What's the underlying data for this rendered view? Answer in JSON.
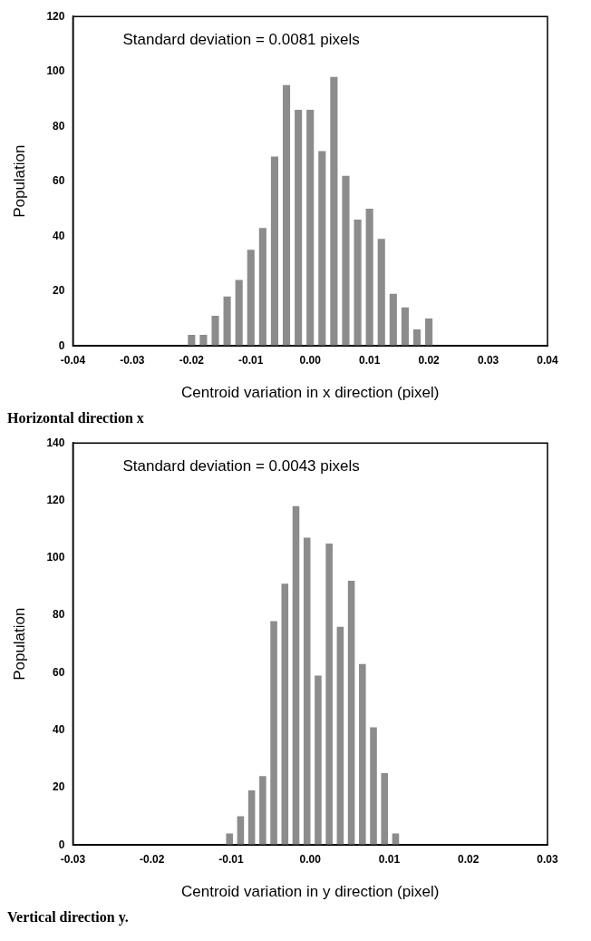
{
  "chart_data": [
    {
      "type": "histogram",
      "xlabel": "Centroid variation in x direction (pixel)",
      "ylabel": "Population",
      "color": "#8c8c8c",
      "bins": [
        -0.021,
        -0.019,
        -0.017,
        -0.015,
        -0.013,
        -0.011,
        -0.009,
        -0.007,
        -0.005,
        -0.003,
        -0.001,
        0.001,
        0.003,
        0.005,
        0.007,
        0.009,
        0.011,
        0.013,
        0.015,
        0.017,
        0.019,
        0.021
      ],
      "values": [
        4,
        4,
        11,
        18,
        24,
        35,
        43,
        69,
        95,
        86,
        86,
        71,
        98,
        62,
        46,
        50,
        39,
        19,
        14,
        6,
        10
      ],
      "xlim": [
        -0.04,
        0.04
      ],
      "xticks": [
        {
          "value": -0.04,
          "label": "-0.04"
        },
        {
          "value": -0.03,
          "label": "-0.03"
        },
        {
          "value": -0.02,
          "label": "-0.02"
        },
        {
          "value": -0.01,
          "label": "-0.01"
        },
        {
          "value": 0,
          "label": "0.00"
        },
        {
          "value": 0.01,
          "label": "0.01"
        },
        {
          "value": 0.02,
          "label": "0.02"
        },
        {
          "value": 0.03,
          "label": "0.03"
        },
        {
          "value": 0.04,
          "label": "0.04"
        }
      ],
      "ylim": [
        0,
        120
      ],
      "yticks": [
        0,
        20,
        40,
        60,
        80,
        100,
        120
      ],
      "grid": false,
      "annotations": [
        "Standard deviation = 0.0081 pixels",
        "Horizontal direction x"
      ]
    },
    {
      "type": "histogram",
      "xlabel": "Centroid variation in y direction (pixel)",
      "ylabel": "Population",
      "color": "#8c8c8c",
      "bins": [
        -0.0109,
        -0.0095,
        -0.0081,
        -0.0067,
        -0.0053,
        -0.0039,
        -0.0025,
        -0.0011,
        0.0003,
        0.0017,
        0.0031,
        0.0045,
        0.0059,
        0.0073,
        0.0087,
        0.0101,
        0.0115
      ],
      "values": [
        4,
        10,
        19,
        24,
        78,
        91,
        118,
        107,
        59,
        105,
        76,
        92,
        63,
        41,
        25,
        4
      ],
      "xlim": [
        -0.03,
        0.03
      ],
      "xticks": [
        {
          "value": -0.03,
          "label": "-0.03"
        },
        {
          "value": -0.02,
          "label": "-0.02"
        },
        {
          "value": -0.01,
          "label": "-0.01"
        },
        {
          "value": 0,
          "label": "0.00"
        },
        {
          "value": 0.01,
          "label": "0.01"
        },
        {
          "value": 0.02,
          "label": "0.02"
        },
        {
          "value": 0.03,
          "label": "0.03"
        }
      ],
      "ylim": [
        0,
        140
      ],
      "yticks": [
        0,
        20,
        40,
        60,
        80,
        100,
        120,
        140
      ],
      "grid": false,
      "annotations": [
        "Standard deviation = 0.0043 pixels",
        "Vertical direction y."
      ]
    }
  ]
}
